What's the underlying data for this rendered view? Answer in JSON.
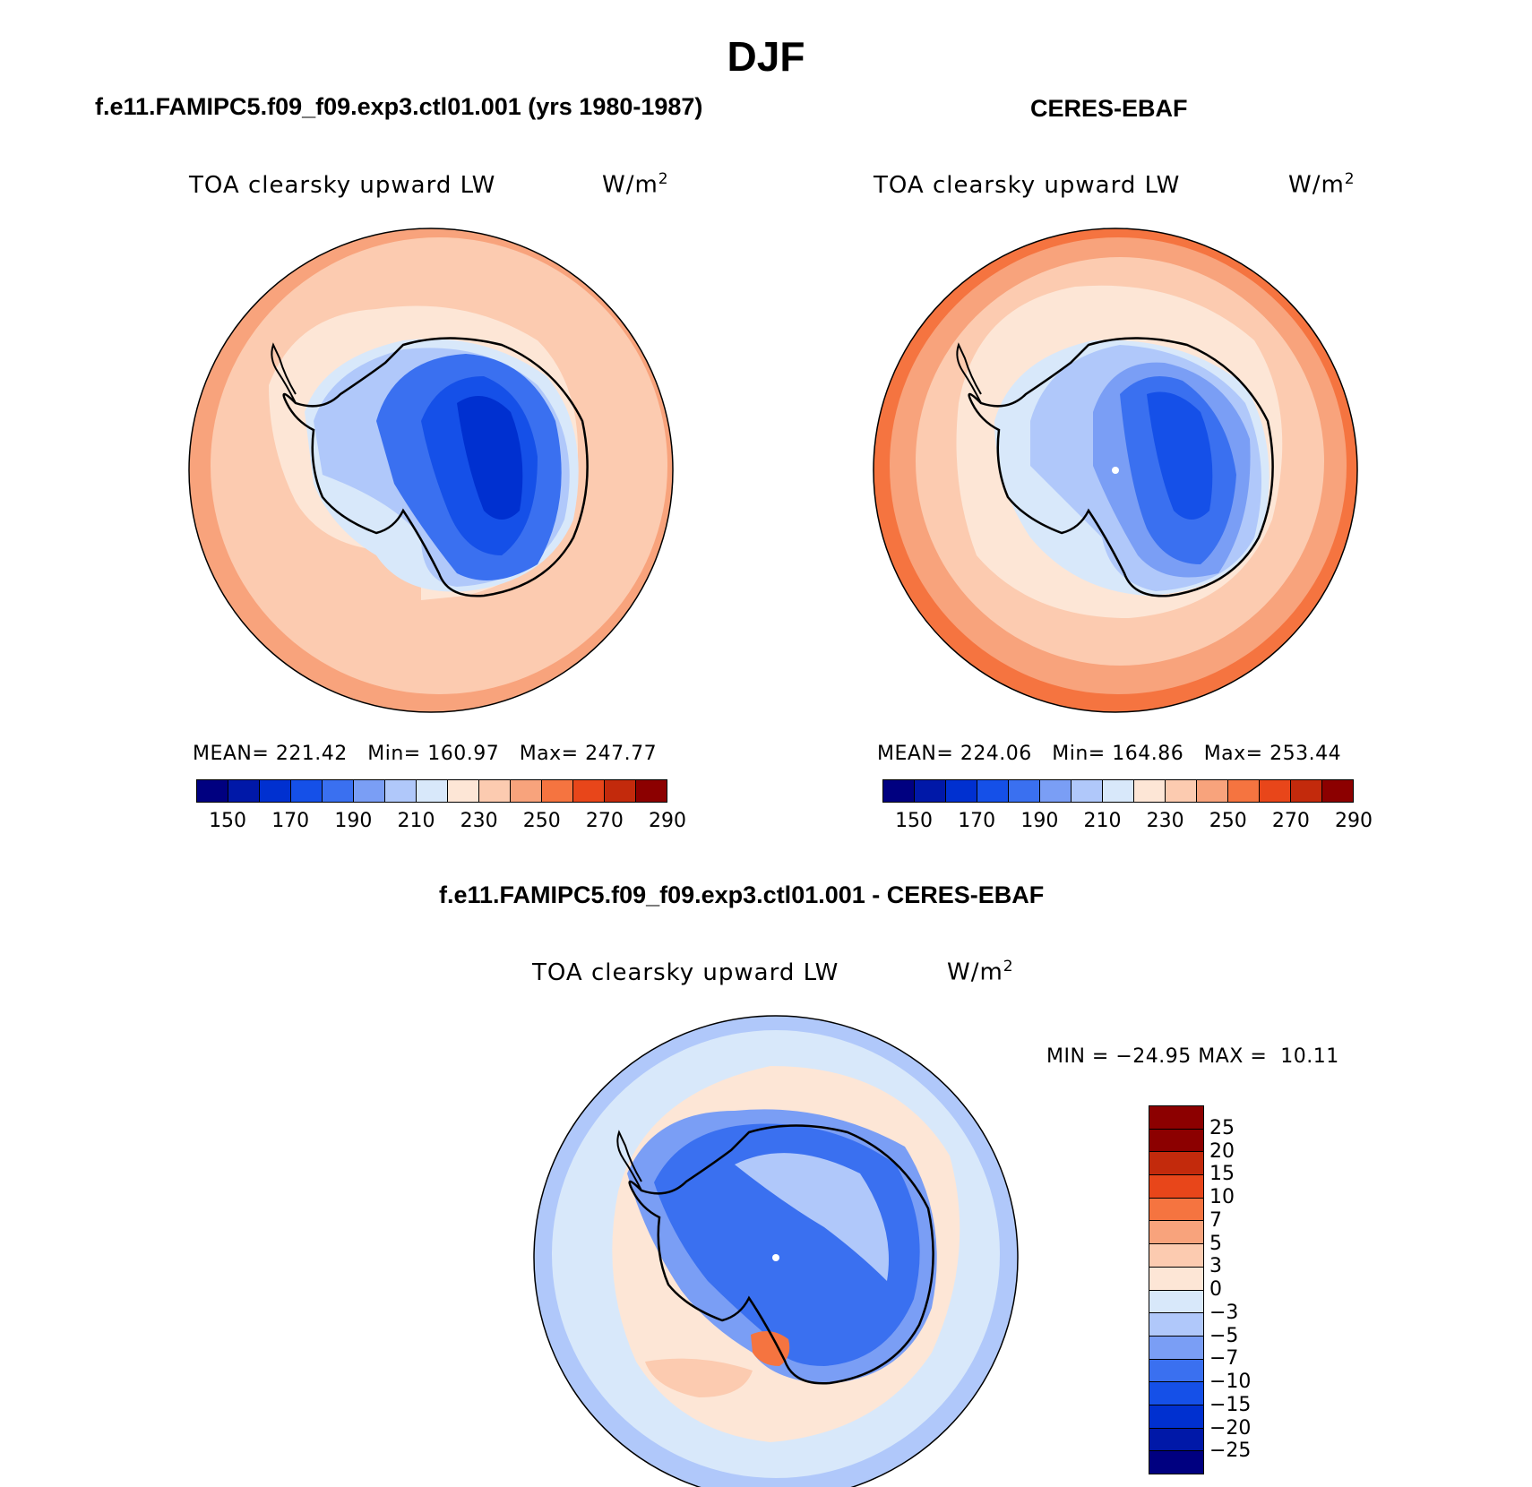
{
  "main_title": "DJF",
  "panels": [
    {
      "title": "f.e11.FAMIPC5.f09_f09.exp3.ctl01.001 (yrs 1980-1987)",
      "variable": "TOA clearsky upward LW",
      "unit": "W/m",
      "unit_sup": "2",
      "stats": "MEAN= 221.42   Min= 160.97   Max= 247.77",
      "mean": 221.42,
      "min": 160.97,
      "max": 247.77
    },
    {
      "title": "CERES-EBAF",
      "variable": "TOA clearsky upward LW",
      "unit": "W/m",
      "unit_sup": "2",
      "stats": "MEAN= 224.06   Min= 164.86   Max= 253.44",
      "mean": 224.06,
      "min": 164.86,
      "max": 253.44
    },
    {
      "title": "f.e11.FAMIPC5.f09_f09.exp3.ctl01.001 - CERES-EBAF",
      "variable": "TOA clearsky upward LW",
      "unit": "W/m",
      "unit_sup": "2",
      "stats": "MIN = −24.95 MAX =  10.11",
      "min": -24.95,
      "max": 10.11
    }
  ],
  "colorbar_abs": {
    "colors": [
      "#000080",
      "#0018a8",
      "#0030d0",
      "#1550e8",
      "#3a70f0",
      "#7a9ef5",
      "#b0c8fa",
      "#d8e8fa",
      "#fde6d6",
      "#fccbb0",
      "#f8a37c",
      "#f57440",
      "#e8461a",
      "#c32a0c",
      "#8c0000"
    ],
    "tick_labels": [
      "150",
      "170",
      "190",
      "210",
      "230",
      "250",
      "270",
      "290"
    ]
  },
  "colorbar_diff": {
    "colors": [
      "#8c0000",
      "#c32a0c",
      "#e8461a",
      "#f57440",
      "#f8a37c",
      "#fccbb0",
      "#fde6d6",
      "#d8e8fa",
      "#b0c8fa",
      "#7a9ef5",
      "#3a70f0",
      "#1550e8",
      "#0030d0",
      "#0018a8",
      "#000080"
    ],
    "tick_labels": [
      "25",
      "20",
      "15",
      "10",
      "7",
      "5",
      "3",
      "0",
      "−3",
      "−5",
      "−7",
      "−10",
      "−15",
      "−20",
      "−25"
    ]
  },
  "chart_data": [
    {
      "type": "heatmap",
      "projection": "south polar stereographic",
      "title": "f.e11.FAMIPC5.f09_f09.exp3.ctl01.001 (yrs 1980-1987)",
      "variable": "TOA clearsky upward LW",
      "units": "W/m2",
      "contour_levels": [
        150,
        160,
        170,
        180,
        190,
        200,
        210,
        220,
        230,
        240,
        250,
        260,
        270,
        280,
        290
      ],
      "mean": 221.42,
      "min": 160.97,
      "max": 247.77
    },
    {
      "type": "heatmap",
      "projection": "south polar stereographic",
      "title": "CERES-EBAF",
      "variable": "TOA clearsky upward LW",
      "units": "W/m2",
      "contour_levels": [
        150,
        160,
        170,
        180,
        190,
        200,
        210,
        220,
        230,
        240,
        250,
        260,
        270,
        280,
        290
      ],
      "mean": 224.06,
      "min": 164.86,
      "max": 253.44
    },
    {
      "type": "heatmap",
      "projection": "south polar stereographic",
      "title": "f.e11.FAMIPC5.f09_f09.exp3.ctl01.001 - CERES-EBAF",
      "variable": "TOA clearsky upward LW",
      "units": "W/m2",
      "contour_levels": [
        -25,
        -20,
        -15,
        -10,
        -7,
        -5,
        -3,
        0,
        3,
        5,
        7,
        10,
        15,
        20,
        25
      ],
      "min": -24.95,
      "max": 10.11
    }
  ]
}
